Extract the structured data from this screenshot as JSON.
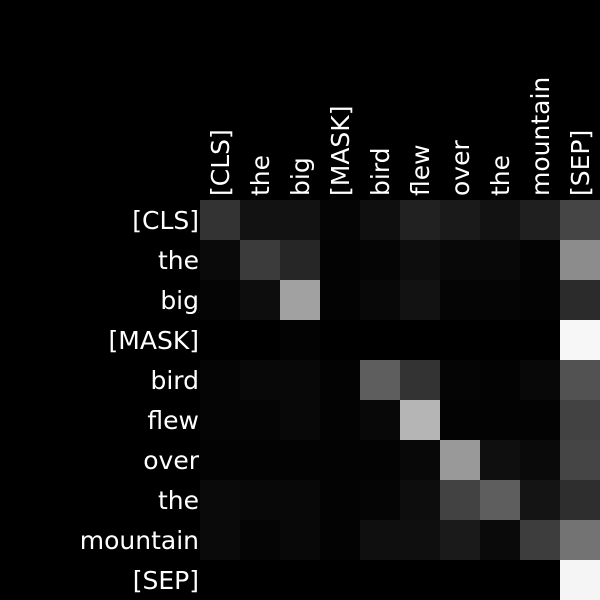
{
  "chart_data": {
    "type": "heatmap",
    "title": "",
    "xlabel": "",
    "ylabel": "",
    "colormap": "grayscale",
    "value_range": [
      0,
      1
    ],
    "grid": false,
    "x_tokens": [
      "[CLS]",
      "the",
      "big",
      "[MASK]",
      "bird",
      "flew",
      "over",
      "the",
      "mountain",
      "[SEP]"
    ],
    "y_tokens": [
      "[CLS]",
      "the",
      "big",
      "[MASK]",
      "bird",
      "flew",
      "over",
      "the",
      "mountain",
      "[SEP]"
    ],
    "values": [
      [
        0.2,
        0.07,
        0.07,
        0.02,
        0.06,
        0.13,
        0.1,
        0.07,
        0.12,
        0.27
      ],
      [
        0.04,
        0.23,
        0.15,
        0.01,
        0.02,
        0.05,
        0.03,
        0.03,
        0.01,
        0.55
      ],
      [
        0.02,
        0.05,
        0.63,
        0.01,
        0.03,
        0.07,
        0.02,
        0.02,
        0.01,
        0.17
      ],
      [
        0.0,
        0.0,
        0.01,
        0.0,
        0.0,
        0.0,
        0.0,
        0.0,
        0.0,
        0.97
      ],
      [
        0.02,
        0.03,
        0.03,
        0.01,
        0.37,
        0.2,
        0.02,
        0.01,
        0.03,
        0.32
      ],
      [
        0.02,
        0.02,
        0.03,
        0.01,
        0.03,
        0.71,
        0.01,
        0.01,
        0.01,
        0.26
      ],
      [
        0.01,
        0.01,
        0.01,
        0.01,
        0.01,
        0.03,
        0.6,
        0.06,
        0.04,
        0.27
      ],
      [
        0.04,
        0.03,
        0.03,
        0.01,
        0.02,
        0.05,
        0.26,
        0.37,
        0.08,
        0.18
      ],
      [
        0.04,
        0.02,
        0.03,
        0.01,
        0.06,
        0.06,
        0.1,
        0.04,
        0.24,
        0.45
      ],
      [
        0.0,
        0.0,
        0.0,
        0.0,
        0.0,
        0.0,
        0.0,
        0.0,
        0.0,
        0.96
      ]
    ]
  },
  "colors": {
    "background": "#000000",
    "label_text": "#ffffff"
  }
}
